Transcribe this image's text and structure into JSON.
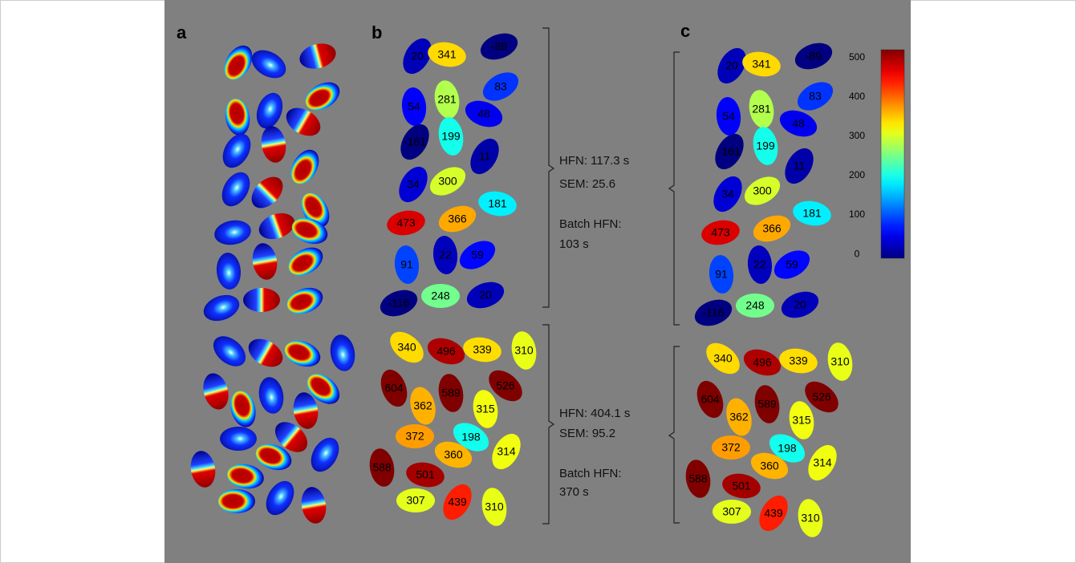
{
  "panels": {
    "a": {
      "label": "a"
    },
    "b": {
      "label": "b",
      "groups": [
        {
          "cells": [
            20,
            341,
            -89,
            54,
            281,
            83,
            48,
            -161,
            199,
            11,
            34,
            300,
            181,
            473,
            366,
            91,
            22,
            59,
            -116,
            248,
            20
          ],
          "stats": [
            "HFN: 117.3 s",
            "SEM: 25.6",
            "Batch HFN:",
            "103 s"
          ]
        },
        {
          "cells": [
            340,
            496,
            339,
            310,
            604,
            589,
            526,
            362,
            315,
            372,
            198,
            360,
            314,
            588,
            501,
            307,
            439,
            310
          ],
          "stats": [
            "HFN: 404.1 s",
            "SEM: 95.2",
            "Batch HFN:",
            "370 s"
          ]
        }
      ]
    },
    "c": {
      "label": "c",
      "groups": [
        {
          "cells": [
            20,
            341,
            -89,
            54,
            281,
            83,
            48,
            -161,
            199,
            11,
            34,
            300,
            181,
            473,
            366,
            91,
            22,
            59,
            -116,
            248,
            20
          ]
        },
        {
          "cells": [
            340,
            496,
            339,
            310,
            604,
            589,
            526,
            362,
            315,
            372,
            198,
            360,
            314,
            588,
            501,
            307,
            439,
            310
          ]
        }
      ]
    }
  },
  "colorbar": {
    "colormap": "jet",
    "lim": [
      -10,
      520
    ],
    "ticks": [
      0,
      100,
      200,
      300,
      400,
      500
    ]
  }
}
